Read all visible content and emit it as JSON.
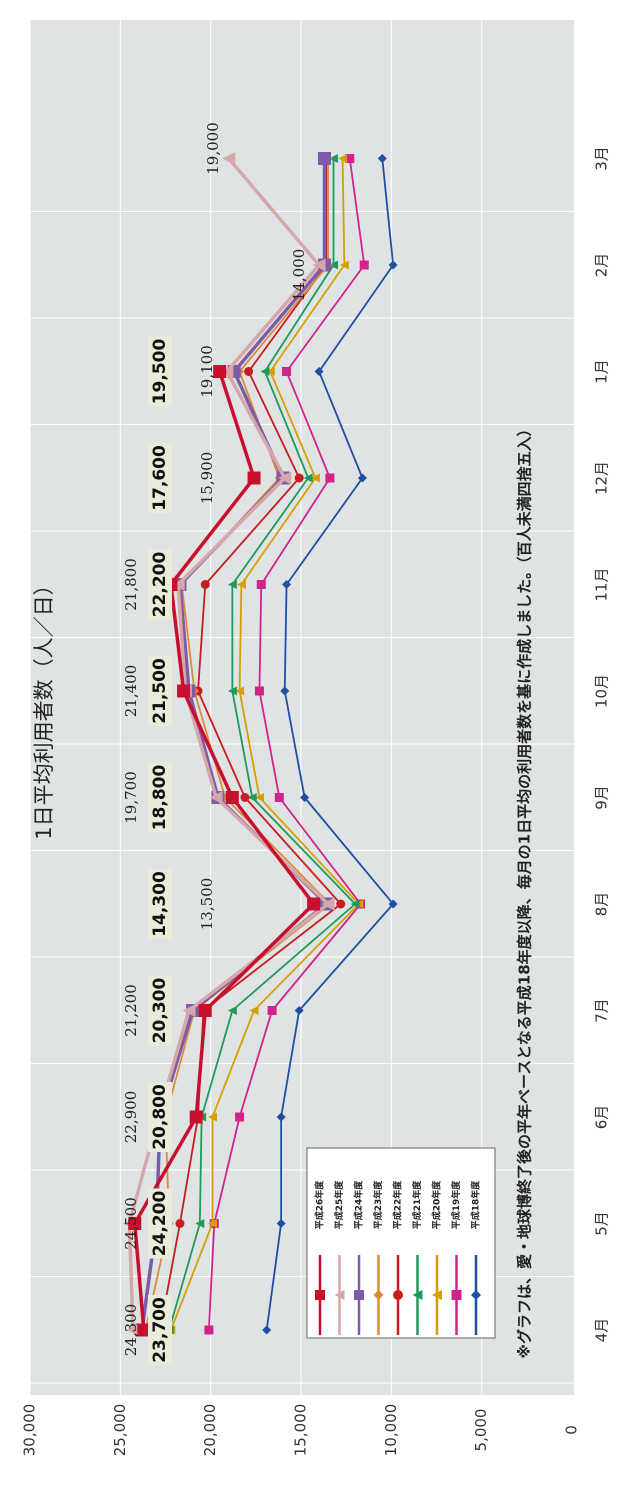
{
  "chart_data": {
    "type": "line",
    "title": "1日平均利用者数（人／日）",
    "note": "※グラフは、愛・地球博終了後の平年ベースとなる平成18年度以降、毎月の1日平均の利用者数を基に作成しました。（百人未満四捨五入）",
    "ylim": [
      0,
      30000
    ],
    "yticks": [
      "0",
      "5,000",
      "10,000",
      "15,000",
      "20,000",
      "25,000",
      "30,000"
    ],
    "grid": true,
    "legend_position": "bottom-left",
    "categories": [
      "4月",
      "5月",
      "6月",
      "7月",
      "8月",
      "9月",
      "10月",
      "11月",
      "12月",
      "1月",
      "2月",
      "3月"
    ],
    "series": [
      {
        "name": "平成26年度",
        "color": "#c8102e",
        "marker": "square",
        "values": [
          23700,
          24200,
          20800,
          20300,
          14300,
          18800,
          21500,
          22200,
          17600,
          19500,
          null,
          null
        ]
      },
      {
        "name": "平成25年度",
        "color": "#d6a7a8",
        "marker": "triangle",
        "values": [
          24300,
          24500,
          22900,
          21200,
          13500,
          19700,
          21400,
          21800,
          15900,
          19100,
          14000,
          19000
        ]
      },
      {
        "name": "平成24年度",
        "color": "#7c5ca8",
        "marker": "square",
        "values": [
          23800,
          23000,
          22800,
          21000,
          13600,
          19600,
          21200,
          21700,
          16000,
          18700,
          13700,
          13700
        ]
      },
      {
        "name": "平成23年度",
        "color": "#e08a38",
        "marker": "diamond",
        "values": [
          23600,
          22300,
          22500,
          20900,
          13400,
          19200,
          20900,
          21600,
          16200,
          18400,
          13500,
          13500
        ]
      },
      {
        "name": "平成22年度",
        "color": "#c41e1e",
        "marker": "circle",
        "values": [
          22800,
          21700,
          20700,
          20400,
          12800,
          18100,
          20700,
          20300,
          15100,
          17900,
          13600,
          13600
        ]
      },
      {
        "name": "平成21年度",
        "color": "#1e9a5a",
        "marker": "triangle",
        "values": [
          22300,
          20600,
          20500,
          18800,
          12000,
          17700,
          18800,
          18800,
          14600,
          17000,
          13200,
          13200
        ]
      },
      {
        "name": "平成20年度",
        "color": "#d4a000",
        "marker": "triangle",
        "values": [
          22200,
          19900,
          19900,
          17600,
          11800,
          17300,
          18400,
          18300,
          14200,
          16700,
          12600,
          12700
        ]
      },
      {
        "name": "平成19年度",
        "color": "#d2238b",
        "marker": "square",
        "values": [
          20100,
          19800,
          18400,
          16600,
          11700,
          16200,
          17300,
          17200,
          13400,
          15800,
          11500,
          12300
        ]
      },
      {
        "name": "平成18年度",
        "color": "#1f4fa0",
        "marker": "diamond",
        "values": [
          16900,
          16100,
          16100,
          15100,
          9900,
          14800,
          15900,
          15800,
          11600,
          14000,
          9900,
          10500
        ]
      }
    ],
    "data_labels": [
      {
        "category": "4月",
        "series": "平成26年度",
        "text": "23,700",
        "boxed": true,
        "value": 23700
      },
      {
        "category": "4月",
        "series": "平成25年度",
        "text": "24,300",
        "boxed": false,
        "value": 24300
      },
      {
        "category": "5月",
        "series": "平成26年度",
        "text": "24,200",
        "boxed": true,
        "value": 24200
      },
      {
        "category": "5月",
        "series": "平成25年度",
        "text": "24,500",
        "boxed": false,
        "value": 24500
      },
      {
        "category": "6月",
        "series": "平成26年度",
        "text": "20,800",
        "boxed": true,
        "value": 20800
      },
      {
        "category": "6月",
        "series": "平成25年度",
        "text": "22,900",
        "boxed": false,
        "value": 22900
      },
      {
        "category": "7月",
        "series": "平成26年度",
        "text": "20,300",
        "boxed": true,
        "value": 20300
      },
      {
        "category": "7月",
        "series": "平成25年度",
        "text": "21,200",
        "boxed": false,
        "value": 21200
      },
      {
        "category": "8月",
        "series": "平成26年度",
        "text": "14,300",
        "boxed": true,
        "value": 14300
      },
      {
        "category": "8月",
        "series": "平成25年度",
        "text": "13,500",
        "boxed": false,
        "value": 13500
      },
      {
        "category": "9月",
        "series": "平成26年度",
        "text": "18,800",
        "boxed": true,
        "value": 18800
      },
      {
        "category": "9月",
        "series": "平成25年度",
        "text": "19,700",
        "boxed": false,
        "value": 19700
      },
      {
        "category": "10月",
        "series": "平成26年度",
        "text": "21,500",
        "boxed": true,
        "value": 21500
      },
      {
        "category": "10月",
        "series": "平成25年度",
        "text": "21,400",
        "boxed": false,
        "value": 21400
      },
      {
        "category": "11月",
        "series": "平成26年度",
        "text": "22,200",
        "boxed": true,
        "value": 22200
      },
      {
        "category": "11月",
        "series": "平成25年度",
        "text": "21,800",
        "boxed": false,
        "value": 21800
      },
      {
        "category": "12月",
        "series": "平成26年度",
        "text": "17,600",
        "boxed": true,
        "value": 17600
      },
      {
        "category": "12月",
        "series": "平成25年度",
        "text": "15,900",
        "boxed": false,
        "value": 15900
      },
      {
        "category": "1月",
        "series": "平成26年度",
        "text": "19,500",
        "boxed": true,
        "value": 19500
      },
      {
        "category": "1月",
        "series": "平成25年度",
        "text": "19,100",
        "boxed": false,
        "value": 19100
      },
      {
        "category": "2月",
        "series": "平成25年度",
        "text": "14,000",
        "boxed": false,
        "value": 14000
      },
      {
        "category": "3月",
        "series": "平成25年度",
        "text": "19,000",
        "boxed": false,
        "value": 19000
      }
    ]
  }
}
